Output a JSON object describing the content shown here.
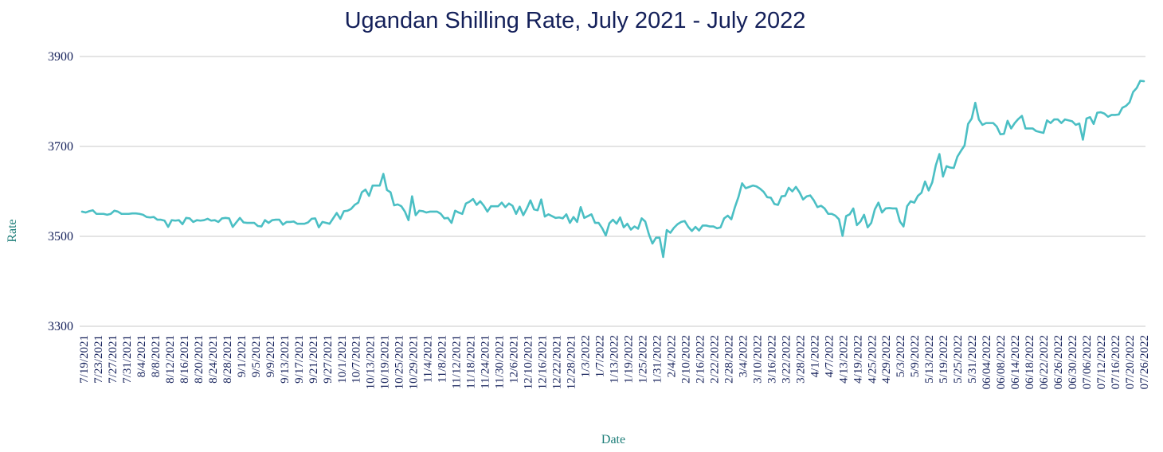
{
  "chart_data": {
    "type": "line",
    "title": "Ugandan Shilling Rate, July 2021 - July 2022",
    "xlabel": "Date",
    "ylabel": "Rate",
    "ylim": [
      3300,
      3900
    ],
    "yticks": [
      3300,
      3500,
      3700,
      3900
    ],
    "grid": true,
    "legend": "none",
    "x_tick_labels": [
      "7/19/2021",
      "7/23/2021",
      "7/27/2021",
      "7/31/2021",
      "8/4/2021",
      "8/8/2021",
      "8/12/2021",
      "8/16/2021",
      "8/20/2021",
      "8/24/2021",
      "8/28/2021",
      "9/1/2021",
      "9/5/2021",
      "9/9/2021",
      "9/13/2021",
      "9/17/2021",
      "9/21/2021",
      "9/27/2021",
      "10/1/2021",
      "10/7/2021",
      "10/13/2021",
      "10/19/2021",
      "10/25/2021",
      "10/29/2021",
      "11/4/2021",
      "11/8/2021",
      "11/12/2021",
      "11/18/2021",
      "11/24/2021",
      "11/30/2021",
      "12/6/2021",
      "12/10/2021",
      "12/16/2021",
      "12/22/2021",
      "12/28/2021",
      "1/3/2022",
      "1/7/2022",
      "1/13/2022",
      "1/19/2022",
      "1/25/2022",
      "1/31/2022",
      "2/4/2022",
      "2/10/2022",
      "2/16/2022",
      "2/22/2022",
      "2/28/2022",
      "3/4/2022",
      "3/10/2022",
      "3/16/2022",
      "3/22/2022",
      "3/28/2022",
      "4/1/2022",
      "4/7/2022",
      "4/13/2022",
      "4/19/2022",
      "4/25/2022",
      "4/29/2022",
      "5/3/2022",
      "5/9/2022",
      "5/13/2022",
      "5/19/2022",
      "5/25/2022",
      "5/31/2022",
      "06/04/2022",
      "06/08/2022",
      "06/14/2022",
      "06/18/2022",
      "06/22/2022",
      "06/26/2022",
      "06/30/2022",
      "07/06/2022",
      "07/12/2022",
      "07/16/2022",
      "07/20/2022",
      "07/26/2022"
    ],
    "series": [
      {
        "color": "#4bbfc4",
        "values": [
          3555,
          3553,
          3556,
          3558,
          3550,
          3550,
          3550,
          3548,
          3550,
          3557,
          3555,
          3550,
          3550,
          3550,
          3551,
          3551,
          3550,
          3548,
          3543,
          3542,
          3543,
          3537,
          3537,
          3535,
          3521,
          3536,
          3535,
          3536,
          3527,
          3541,
          3540,
          3532,
          3536,
          3535,
          3536,
          3539,
          3535,
          3536,
          3532,
          3540,
          3541,
          3540,
          3521,
          3531,
          3541,
          3531,
          3530,
          3530,
          3530,
          3523,
          3522,
          3536,
          3530,
          3536,
          3537,
          3537,
          3526,
          3532,
          3532,
          3533,
          3528,
          3528,
          3528,
          3531,
          3539,
          3540,
          3520,
          3532,
          3530,
          3528,
          3540,
          3552,
          3539,
          3556,
          3557,
          3561,
          3570,
          3575,
          3598,
          3604,
          3590,
          3613,
          3613,
          3613,
          3639,
          3603,
          3598,
          3569,
          3571,
          3567,
          3555,
          3536,
          3589,
          3547,
          3557,
          3556,
          3553,
          3555,
          3555,
          3555,
          3550,
          3540,
          3541,
          3530,
          3557,
          3553,
          3550,
          3573,
          3577,
          3583,
          3570,
          3578,
          3568,
          3555,
          3567,
          3567,
          3567,
          3575,
          3565,
          3573,
          3568,
          3550,
          3566,
          3547,
          3562,
          3580,
          3560,
          3558,
          3582,
          3544,
          3549,
          3545,
          3541,
          3542,
          3540,
          3549,
          3530,
          3543,
          3532,
          3565,
          3541,
          3545,
          3549,
          3530,
          3530,
          3518,
          3502,
          3529,
          3537,
          3528,
          3542,
          3520,
          3528,
          3515,
          3522,
          3517,
          3540,
          3533,
          3505,
          3484,
          3497,
          3497,
          3454,
          3514,
          3508,
          3519,
          3527,
          3532,
          3534,
          3521,
          3512,
          3521,
          3513,
          3524,
          3524,
          3522,
          3522,
          3518,
          3520,
          3540,
          3546,
          3538,
          3565,
          3588,
          3618,
          3607,
          3610,
          3613,
          3611,
          3606,
          3599,
          3587,
          3586,
          3572,
          3570,
          3589,
          3590,
          3608,
          3600,
          3610,
          3598,
          3582,
          3589,
          3591,
          3580,
          3565,
          3568,
          3562,
          3550,
          3550,
          3546,
          3538,
          3501,
          3545,
          3549,
          3562,
          3525,
          3533,
          3548,
          3520,
          3530,
          3560,
          3575,
          3553,
          3562,
          3563,
          3562,
          3562,
          3533,
          3522,
          3567,
          3578,
          3575,
          3590,
          3597,
          3622,
          3602,
          3620,
          3658,
          3683,
          3633,
          3656,
          3653,
          3652,
          3677,
          3690,
          3702,
          3750,
          3762,
          3797,
          3760,
          3748,
          3752,
          3752,
          3752,
          3744,
          3727,
          3728,
          3757,
          3740,
          3752,
          3761,
          3768,
          3740,
          3740,
          3740,
          3734,
          3732,
          3730,
          3758,
          3752,
          3760,
          3760,
          3752,
          3760,
          3758,
          3756,
          3748,
          3751,
          3715,
          3762,
          3765,
          3750,
          3775,
          3776,
          3773,
          3766,
          3770,
          3770,
          3771,
          3786,
          3790,
          3798,
          3821,
          3830,
          3846,
          3845
        ]
      }
    ]
  }
}
